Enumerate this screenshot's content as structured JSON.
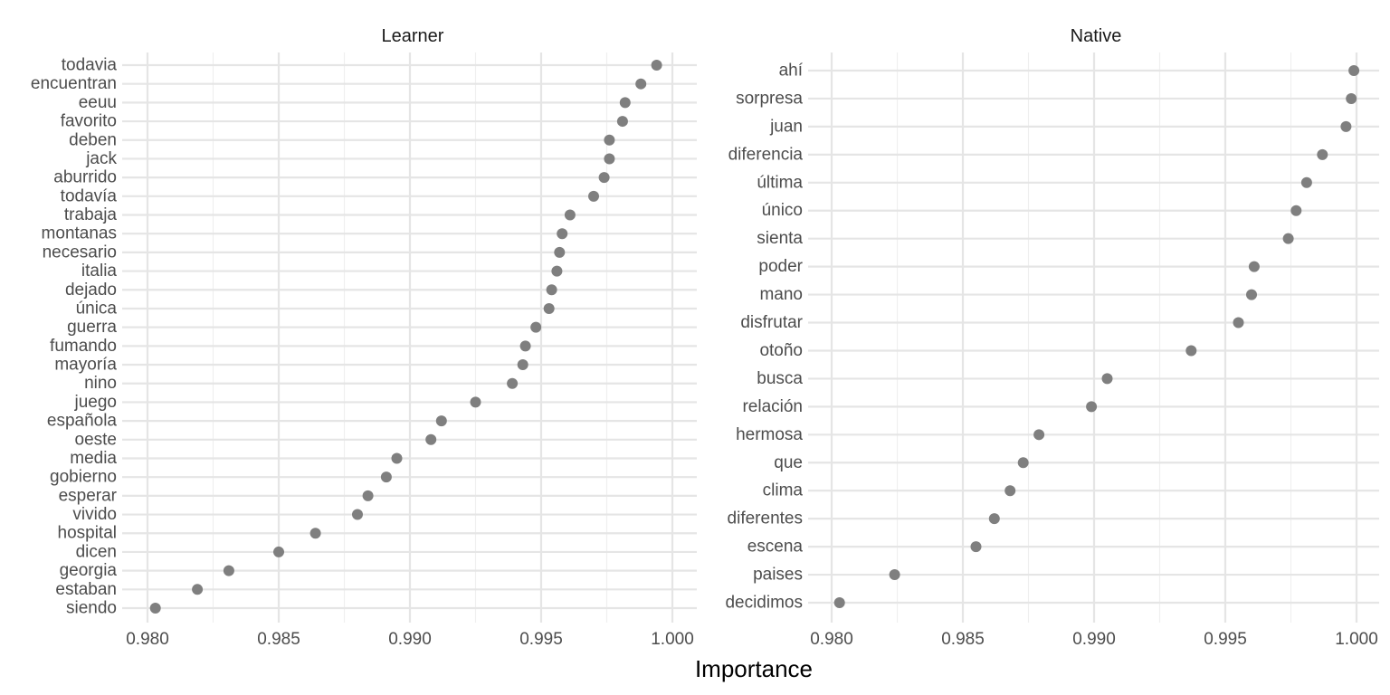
{
  "chart_data": {
    "type": "scatter",
    "xlabel": "Importance",
    "xlim": [
      0.98,
      1.0
    ],
    "x_ticks": [
      "0.980",
      "0.985",
      "0.990",
      "0.995",
      "1.000"
    ],
    "grid": true,
    "point_color": "#7f7f7f",
    "panels": [
      {
        "title": "Learner",
        "categories": [
          "todavia",
          "encuentran",
          "eeuu",
          "favorito",
          "deben",
          "jack",
          "aburrido",
          "todavía",
          "trabaja",
          "montanas",
          "necesario",
          "italia",
          "dejado",
          "única",
          "guerra",
          "fumando",
          "mayoría",
          "nino",
          "juego",
          "española",
          "oeste",
          "media",
          "gobierno",
          "esperar",
          "vivido",
          "hospital",
          "dicen",
          "georgia",
          "estaban",
          "siendo"
        ],
        "values": [
          0.9994,
          0.9988,
          0.9982,
          0.9981,
          0.9976,
          0.9976,
          0.9974,
          0.997,
          0.9961,
          0.9958,
          0.9957,
          0.9956,
          0.9954,
          0.9953,
          0.9948,
          0.9944,
          0.9943,
          0.9939,
          0.9925,
          0.9912,
          0.9908,
          0.9895,
          0.9891,
          0.9884,
          0.988,
          0.9864,
          0.985,
          0.9831,
          0.9819,
          0.9803
        ]
      },
      {
        "title": "Native",
        "categories": [
          "ahí",
          "sorpresa",
          "juan",
          "diferencia",
          "última",
          "único",
          "sienta",
          "poder",
          "mano",
          "disfrutar",
          "otoño",
          "busca",
          "relación",
          "hermosa",
          "que",
          "clima",
          "diferentes",
          "escena",
          "paises",
          "decidimos"
        ],
        "values": [
          0.9999,
          0.9998,
          0.9996,
          0.9987,
          0.9981,
          0.9977,
          0.9974,
          0.9961,
          0.996,
          0.9955,
          0.9937,
          0.9905,
          0.9899,
          0.9879,
          0.9873,
          0.9868,
          0.9862,
          0.9855,
          0.9824,
          0.9803
        ]
      }
    ]
  }
}
